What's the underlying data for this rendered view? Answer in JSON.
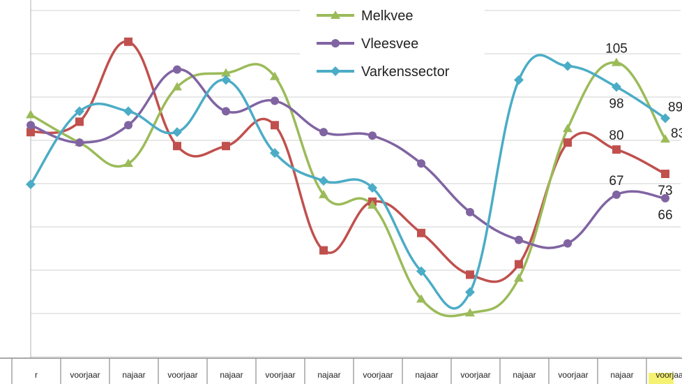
{
  "chart_data": {
    "type": "line",
    "title": "",
    "xlabel": "",
    "ylabel": "",
    "ylim": [
      20,
      123
    ],
    "grid": true,
    "legend_position": "top-center",
    "categories": [
      "r",
      "voorjaar",
      "najaar",
      "voorjaar",
      "najaar",
      "voorjaar",
      "najaar",
      "voorjaar",
      "najaar",
      "voorjaar",
      "najaar",
      "voorjaar",
      "najaar",
      "voorjaar"
    ],
    "x": [
      0,
      1,
      2,
      3,
      4,
      5,
      6,
      7,
      8,
      9,
      10,
      11,
      12,
      13
    ],
    "series": [
      {
        "name": "",
        "color": "#c0504d",
        "marker": "square",
        "x": [
          0,
          1,
          2,
          3,
          4,
          5,
          6,
          7,
          8,
          9,
          10,
          11,
          12,
          13
        ],
        "values": [
          85,
          88,
          111,
          81,
          81,
          87,
          51,
          65,
          56,
          44,
          47,
          82,
          80,
          73
        ]
      },
      {
        "name": "Melkvee",
        "color": "#9bbb59",
        "marker": "triangle",
        "x": [
          0,
          1,
          2,
          3,
          4,
          5,
          6,
          7,
          8,
          9,
          10,
          11,
          12,
          13
        ],
        "values": [
          90,
          82,
          76,
          98,
          102,
          101,
          67,
          64,
          37,
          33,
          43,
          86,
          105,
          83
        ]
      },
      {
        "name": "Vleesvee",
        "color": "#8064a2",
        "marker": "circle",
        "x": [
          0,
          1,
          2,
          3,
          4,
          5,
          6,
          7,
          8,
          9,
          10,
          11,
          12,
          13
        ],
        "values": [
          87,
          82,
          87,
          103,
          91,
          94,
          85,
          84,
          76,
          62,
          54,
          53,
          67,
          66
        ]
      },
      {
        "name": "Varkenssector",
        "color": "#4bacc6",
        "marker": "diamond",
        "x": [
          0,
          1,
          2,
          3,
          4,
          5,
          6,
          7,
          8,
          9,
          10,
          11,
          12,
          13
        ],
        "values": [
          70,
          91,
          91,
          85,
          100,
          79,
          71,
          69,
          45,
          39,
          100,
          104,
          98,
          89
        ]
      }
    ],
    "data_labels": [
      {
        "series": 1,
        "index": 12,
        "text": "105",
        "pos": "above"
      },
      {
        "series": 3,
        "index": 12,
        "text": "98",
        "pos": "below"
      },
      {
        "series": 3,
        "index": 13,
        "text": "89",
        "pos": "above-right"
      },
      {
        "series": 1,
        "index": 13,
        "text": "83",
        "pos": "right"
      },
      {
        "series": 0,
        "index": 12,
        "text": "80",
        "pos": "above"
      },
      {
        "series": 2,
        "index": 12,
        "text": "67",
        "pos": "above"
      },
      {
        "series": 0,
        "index": 13,
        "text": "73",
        "pos": "below"
      },
      {
        "series": 2,
        "index": 13,
        "text": "66",
        "pos": "below"
      }
    ],
    "legend": [
      "Melkvee",
      "Vleesvee",
      "Varkenssector"
    ]
  }
}
